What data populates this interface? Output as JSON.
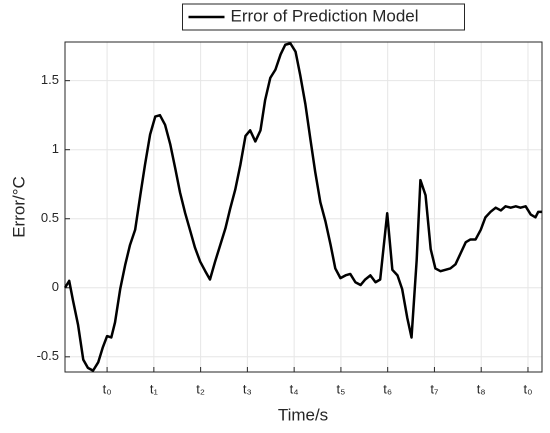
{
  "chart_data": {
    "type": "line",
    "xlabel": "Time/s",
    "ylabel": "Error/°C",
    "legend": "top",
    "grid": true,
    "xlim": [
      0.1,
      10.3
    ],
    "ylim": [
      -0.61,
      1.78
    ],
    "xticks": [
      {
        "value": 1,
        "label": "t₀"
      },
      {
        "value": 2,
        "label": "t₁"
      },
      {
        "value": 3,
        "label": "t₂"
      },
      {
        "value": 4,
        "label": "t₃"
      },
      {
        "value": 5,
        "label": "t₄"
      },
      {
        "value": 6,
        "label": "t₅"
      },
      {
        "value": 7,
        "label": "t₆"
      },
      {
        "value": 8,
        "label": "t₇"
      },
      {
        "value": 9,
        "label": "t₈"
      },
      {
        "value": 10,
        "label": "t₀"
      }
    ],
    "yticks": [
      -0.5,
      0,
      0.5,
      1,
      1.5
    ],
    "x": [
      0.1,
      0.19,
      0.27,
      0.38,
      0.49,
      0.59,
      0.7,
      0.81,
      0.91,
      1.0,
      1.09,
      1.17,
      1.28,
      1.39,
      1.49,
      1.6,
      1.71,
      1.81,
      1.92,
      2.03,
      2.13,
      2.24,
      2.35,
      2.46,
      2.56,
      2.67,
      2.78,
      2.88,
      2.99,
      3.1,
      3.2,
      3.31,
      3.42,
      3.53,
      3.63,
      3.74,
      3.85,
      3.96,
      4.06,
      4.17,
      4.28,
      4.38,
      4.49,
      4.6,
      4.71,
      4.81,
      4.92,
      5.03,
      5.13,
      5.24,
      5.35,
      5.45,
      5.56,
      5.67,
      5.78,
      5.88,
      5.99,
      6.1,
      6.2,
      6.31,
      6.42,
      6.52,
      6.63,
      6.74,
      6.84,
      6.99,
      7.1,
      7.21,
      7.31,
      7.42,
      7.51,
      7.62,
      7.7,
      7.81,
      7.92,
      8.02,
      8.13,
      8.34,
      8.45,
      8.56,
      8.67,
      8.77,
      8.88,
      8.99,
      9.09,
      9.2,
      9.31,
      9.42,
      9.52,
      9.63,
      9.74,
      9.84,
      9.95,
      10.06,
      10.16,
      10.22,
      10.3
    ],
    "series": [
      {
        "name": "Error of Prediction Model",
        "color": "#000000",
        "values": [
          0,
          0.05,
          -0.09,
          -0.27,
          -0.52,
          -0.58,
          -0.6,
          -0.54,
          -0.43,
          -0.35,
          -0.36,
          -0.25,
          -0.01,
          0.17,
          0.31,
          0.42,
          0.67,
          0.89,
          1.11,
          1.24,
          1.25,
          1.18,
          1.04,
          0.86,
          0.69,
          0.54,
          0.41,
          0.29,
          0.19,
          0.12,
          0.06,
          0.19,
          0.31,
          0.43,
          0.57,
          0.71,
          0.89,
          1.1,
          1.14,
          1.06,
          1.14,
          1.36,
          1.52,
          1.58,
          1.69,
          1.76,
          1.77,
          1.71,
          1.54,
          1.33,
          1.07,
          0.84,
          0.62,
          0.48,
          0.31,
          0.14,
          0.07,
          0.09,
          0.1,
          0.04,
          0.02,
          0.06,
          0.09,
          0.04,
          0.06,
          0.54,
          0.13,
          0.09,
          -0.01,
          -0.22,
          -0.36,
          0.2,
          0.78,
          0.67,
          0.28,
          0.14,
          0.12,
          0.14,
          0.17,
          0.25,
          0.33,
          0.35,
          0.35,
          0.42,
          0.51,
          0.55,
          0.58,
          0.56,
          0.59,
          0.58,
          0.59,
          0.58,
          0.59,
          0.53,
          0.51,
          0.55,
          0.55
        ]
      }
    ]
  }
}
